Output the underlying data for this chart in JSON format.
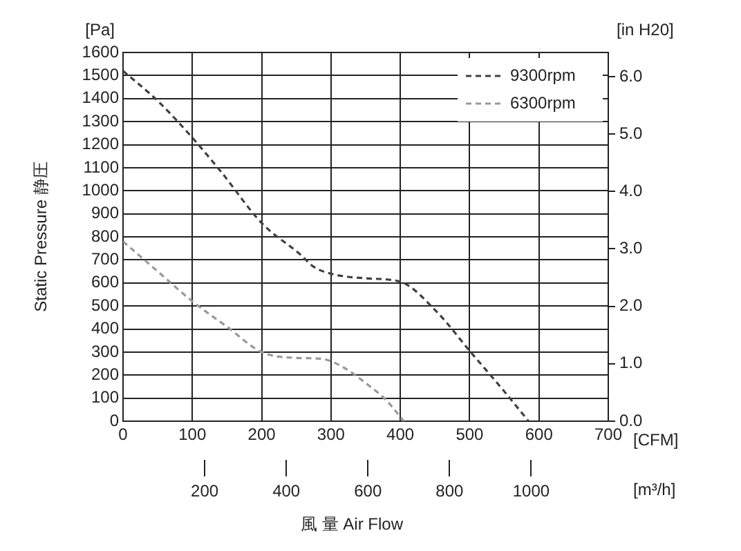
{
  "chart_data": {
    "type": "line",
    "xlabel": "風 量 Air Flow",
    "ylabel": "Static Pressure 静圧",
    "y2label": "[in H20]",
    "annotations": [
      "[Pa]",
      "[CFM]",
      "[m³/h]"
    ],
    "series": [
      {
        "name": "9300rpm",
        "color": "#404040",
        "x": [
          0,
          50,
          100,
          142,
          200,
          255,
          275,
          300,
          350,
          400,
          454,
          500,
          547,
          585
        ],
        "values": [
          1520,
          1390,
          1230,
          1080,
          860,
          725,
          670,
          640,
          620,
          605,
          470,
          305,
          140,
          0
        ]
      },
      {
        "name": "6300rpm",
        "color": "#999999",
        "x": [
          0,
          50,
          100,
          150,
          200,
          248,
          288,
          320,
          348,
          380,
          405
        ],
        "values": [
          780,
          650,
          520,
          410,
          300,
          275,
          270,
          230,
          170,
          90,
          0
        ]
      }
    ],
    "xlim": [
      0,
      700
    ],
    "xticks": [
      0,
      100,
      200,
      300,
      400,
      500,
      600,
      700
    ],
    "x2lim": [
      0,
      1189
    ],
    "x2ticks": [
      200,
      400,
      600,
      800,
      1000
    ],
    "ylim": [
      0,
      1600
    ],
    "yticks": [
      0,
      100,
      200,
      300,
      400,
      500,
      600,
      700,
      800,
      900,
      1000,
      1100,
      1200,
      1300,
      1400,
      1500,
      1600
    ],
    "y2lim": [
      0,
      6.42
    ],
    "y2ticks": [
      {
        "value": 0,
        "label": "0.0"
      },
      {
        "value": 1,
        "label": "1.0"
      },
      {
        "value": 2,
        "label": "2.0"
      },
      {
        "value": 3,
        "label": "3.0"
      },
      {
        "value": 4,
        "label": "4.0"
      },
      {
        "value": 5,
        "label": "5.0"
      },
      {
        "value": 6,
        "label": "6.0"
      }
    ],
    "grid": true,
    "legend": "top right",
    "marker": "none",
    "line_style": "dashed"
  }
}
